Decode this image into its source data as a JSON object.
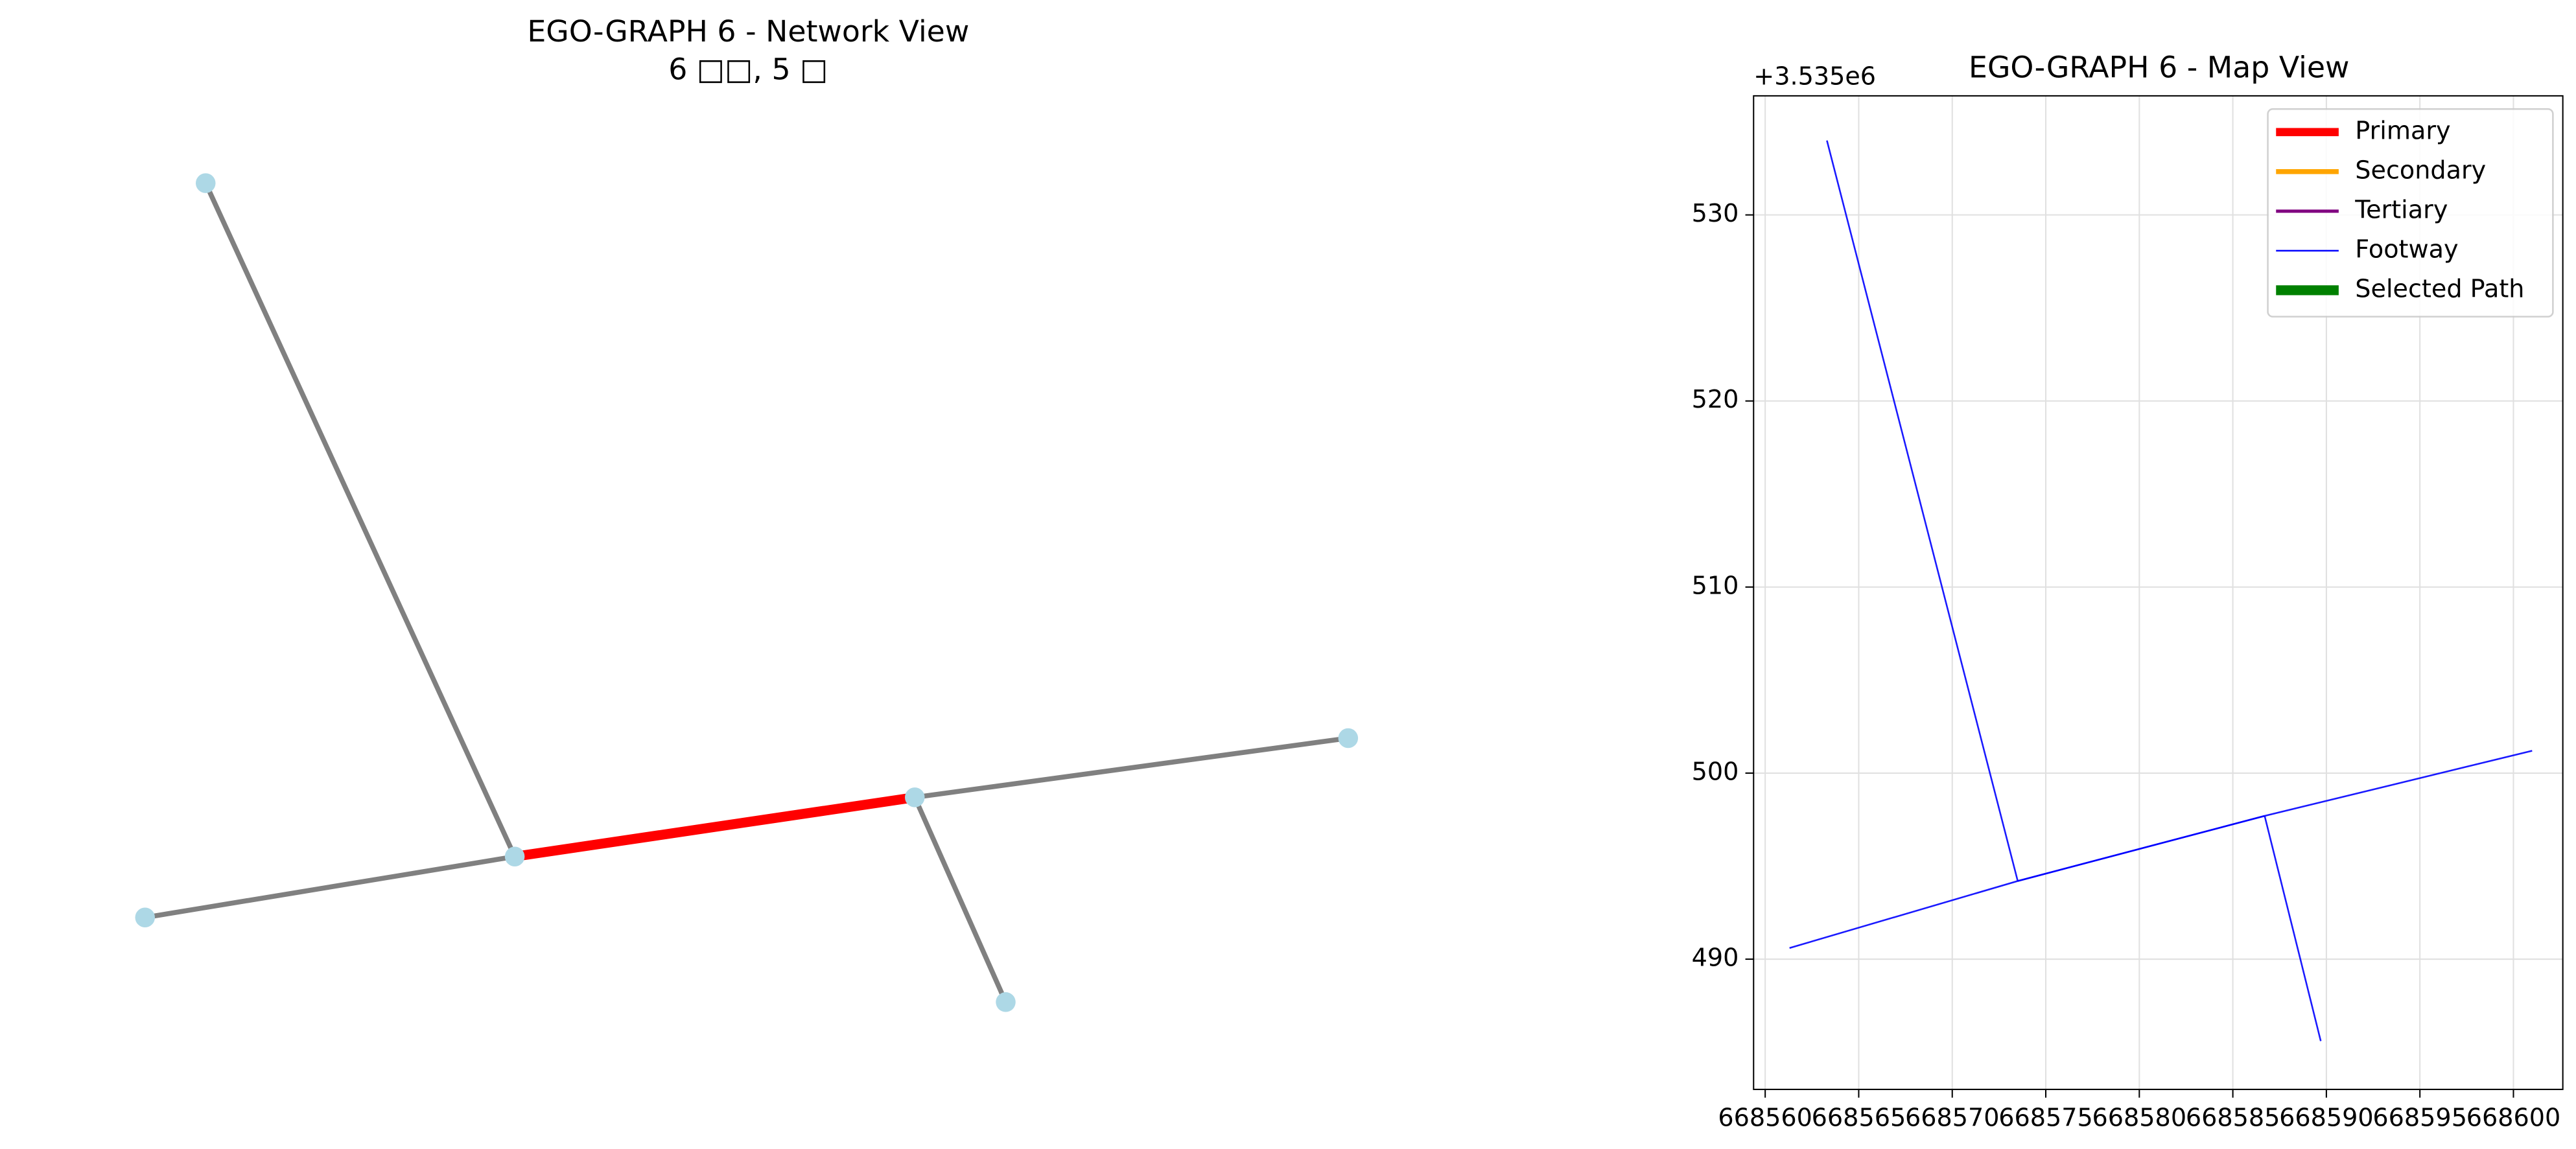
{
  "chart_data": [
    {
      "type": "network",
      "title": "EGO-GRAPH 6 - Network View",
      "subtitle": "6 □□, 5 □",
      "x": [
        668561.3,
        668563.3,
        668573.5,
        668586.7,
        668589.7,
        668601.0
      ],
      "y": [
        490.6,
        534.0,
        494.2,
        497.7,
        485.6,
        501.2
      ],
      "node_color": "#add8e6",
      "edges": [
        [
          0,
          2
        ],
        [
          1,
          2
        ],
        [
          2,
          3
        ],
        [
          3,
          4
        ],
        [
          3,
          5
        ]
      ],
      "edge_colors": [
        "#808080",
        "#808080",
        "#ff0000",
        "#808080",
        "#808080"
      ],
      "edge_widths": [
        3,
        3,
        6,
        3,
        3
      ]
    },
    {
      "type": "line",
      "title": "EGO-GRAPH 6 - Map View",
      "y_offset_label": "+3.535e6",
      "xlim": [
        668559.38,
        668602.64
      ],
      "ylim": [
        483.0,
        536.4
      ],
      "xticks": [
        668560,
        668565,
        668570,
        668575,
        668580,
        668585,
        668590,
        668595,
        668600
      ],
      "yticks": [
        490,
        500,
        510,
        520,
        530
      ],
      "grid": true,
      "legend": "upper right",
      "series": [
        {
          "name": "Primary",
          "color": "#ff0000",
          "width": 5
        },
        {
          "name": "Secondary",
          "color": "#ffa500",
          "width": 3
        },
        {
          "name": "Tertiary",
          "color": "#800080",
          "width": 2
        },
        {
          "name": "Footway",
          "color": "#0000ff",
          "width": 1,
          "segments": [
            {
              "x": [
                668561.3,
                668573.5
              ],
              "y": [
                490.6,
                494.2
              ]
            },
            {
              "x": [
                668563.3,
                668573.5
              ],
              "y": [
                534.0,
                494.2
              ]
            },
            {
              "x": [
                668573.5,
                668586.7
              ],
              "y": [
                494.2,
                497.7
              ]
            },
            {
              "x": [
                668573.5,
                668586.7
              ],
              "y": [
                494.2,
                497.7
              ]
            },
            {
              "x": [
                668586.7,
                668589.7
              ],
              "y": [
                497.7,
                485.6
              ]
            },
            {
              "x": [
                668586.7,
                668601.0
              ],
              "y": [
                497.7,
                501.2
              ]
            }
          ]
        },
        {
          "name": "Selected Path",
          "color": "#008000",
          "width": 6
        }
      ]
    }
  ]
}
